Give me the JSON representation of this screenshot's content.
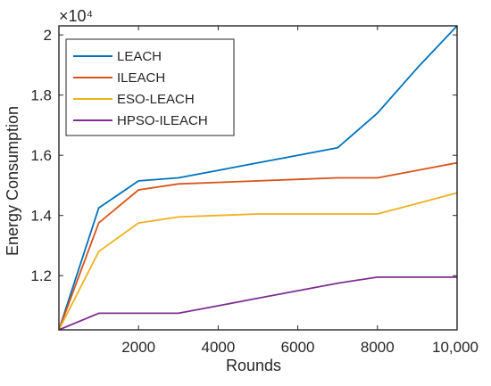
{
  "chart_data": {
    "type": "line",
    "xlabel": "Rounds",
    "ylabel": "Energy Consumption",
    "y_multiplier_label": "×10⁴",
    "xlim": [
      0,
      10000
    ],
    "ylim": [
      1.02,
      2.03
    ],
    "x_ticks": [
      2000,
      4000,
      6000,
      8000,
      10000
    ],
    "x_tick_labels": [
      "2000",
      "4000",
      "6000",
      "8000",
      "10,000"
    ],
    "y_ticks": [
      1.2,
      1.4,
      1.6,
      1.8,
      2.0
    ],
    "y_tick_labels": [
      "1.2",
      "1.4",
      "1.6",
      "1.8",
      "2"
    ],
    "grid": false,
    "legend_position": "top-left",
    "series": [
      {
        "name": "LEACH",
        "color": "#0072BD",
        "x": [
          0,
          1000,
          2000,
          3000,
          4000,
          5000,
          6000,
          7000,
          8000,
          9000,
          10000
        ],
        "y": [
          1.02,
          1.425,
          1.515,
          1.525,
          1.55,
          1.575,
          1.6,
          1.625,
          1.74,
          1.89,
          2.03
        ]
      },
      {
        "name": "ILEACH",
        "color": "#D95319",
        "x": [
          0,
          1000,
          2000,
          3000,
          4000,
          5000,
          6000,
          7000,
          8000,
          9000,
          10000
        ],
        "y": [
          1.02,
          1.375,
          1.485,
          1.505,
          1.51,
          1.515,
          1.52,
          1.525,
          1.525,
          1.55,
          1.575
        ]
      },
      {
        "name": "ESO-LEACH",
        "color": "#EDB120",
        "x": [
          0,
          1000,
          2000,
          3000,
          4000,
          5000,
          6000,
          7000,
          8000,
          9000,
          10000
        ],
        "y": [
          1.02,
          1.28,
          1.375,
          1.395,
          1.4,
          1.405,
          1.405,
          1.405,
          1.405,
          1.44,
          1.475
        ]
      },
      {
        "name": "HPSO-ILEACH",
        "color": "#7E2F8E",
        "x": [
          0,
          1000,
          2000,
          3000,
          4000,
          5000,
          6000,
          7000,
          8000,
          9000,
          10000
        ],
        "y": [
          1.02,
          1.075,
          1.075,
          1.075,
          1.1,
          1.125,
          1.15,
          1.175,
          1.195,
          1.195,
          1.195
        ]
      }
    ]
  }
}
